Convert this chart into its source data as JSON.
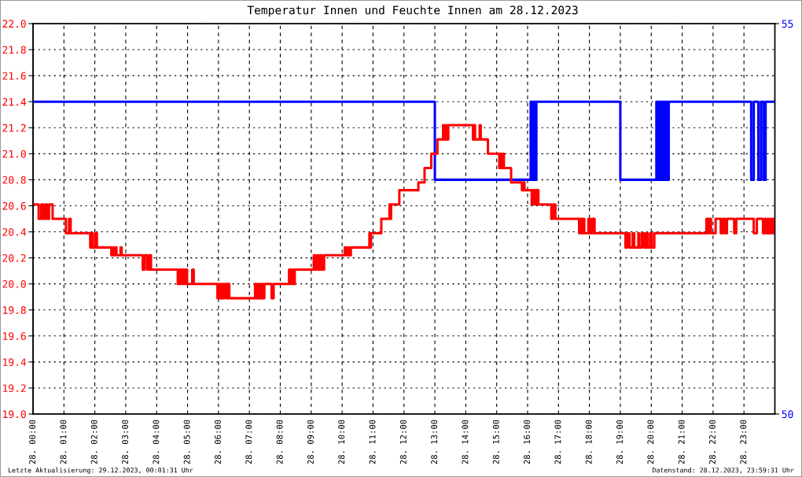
{
  "chart_data": {
    "type": "step",
    "title": "Temperatur Innen und Feuchte Innen am 28.12.2023",
    "annotations": [
      "Letzte Aktualisierung: 29.12.2023, 00:01:31 Uhr",
      "Datenstand: 28.12.2023, 23:59:31 Uhr"
    ],
    "xlim": [
      "2023-12-28T00:00",
      "2023-12-29T00:00"
    ],
    "xticks": [
      {
        "value": "2023-12-28T00:00",
        "label": "28. 00:00"
      },
      {
        "value": "2023-12-28T01:00",
        "label": "28. 01:00"
      },
      {
        "value": "2023-12-28T02:00",
        "label": "28. 02:00"
      },
      {
        "value": "2023-12-28T03:00",
        "label": "28. 03:00"
      },
      {
        "value": "2023-12-28T04:00",
        "label": "28. 04:00"
      },
      {
        "value": "2023-12-28T05:00",
        "label": "28. 05:00"
      },
      {
        "value": "2023-12-28T06:00",
        "label": "28. 06:00"
      },
      {
        "value": "2023-12-28T07:00",
        "label": "28. 07:00"
      },
      {
        "value": "2023-12-28T08:00",
        "label": "28. 08:00"
      },
      {
        "value": "2023-12-28T09:00",
        "label": "28. 09:00"
      },
      {
        "value": "2023-12-28T10:00",
        "label": "28. 10:00"
      },
      {
        "value": "2023-12-28T11:00",
        "label": "28. 11:00"
      },
      {
        "value": "2023-12-28T12:00",
        "label": "28. 12:00"
      },
      {
        "value": "2023-12-28T13:00",
        "label": "28. 13:00"
      },
      {
        "value": "2023-12-28T14:00",
        "label": "28. 14:00"
      },
      {
        "value": "2023-12-28T15:00",
        "label": "28. 15:00"
      },
      {
        "value": "2023-12-28T16:00",
        "label": "28. 16:00"
      },
      {
        "value": "2023-12-28T17:00",
        "label": "28. 17:00"
      },
      {
        "value": "2023-12-28T18:00",
        "label": "28. 18:00"
      },
      {
        "value": "2023-12-28T19:00",
        "label": "28. 19:00"
      },
      {
        "value": "2023-12-28T20:00",
        "label": "28. 20:00"
      },
      {
        "value": "2023-12-28T21:00",
        "label": "28. 21:00"
      },
      {
        "value": "2023-12-28T22:00",
        "label": "28. 22:00"
      },
      {
        "value": "2023-12-28T23:00",
        "label": "28. 23:00"
      }
    ],
    "ylim": [
      19,
      22
    ],
    "yticks": [
      {
        "value": 19,
        "label": "19.0"
      },
      19.2,
      19.4,
      19.6,
      19.8,
      {
        "value": 20,
        "label": "20.0"
      },
      20.2,
      20.4,
      20.6,
      20.8,
      {
        "value": 21,
        "label": "21.0"
      },
      21.2,
      21.4,
      21.6,
      21.8,
      {
        "value": 22,
        "label": "22.0"
      }
    ],
    "y2lim": [
      50,
      55
    ],
    "y2ticks": [
      50,
      55
    ],
    "grid": true,
    "series": [
      {
        "color": "#ff0000",
        "x": [
          "2023-12-28T00:00",
          "2023-12-28T00:11",
          "2023-12-28T00:16",
          "2023-12-28T00:20",
          "2023-12-28T00:24",
          "2023-12-28T00:28",
          "2023-12-28T00:31",
          "2023-12-28T00:38",
          "2023-12-28T01:04",
          "2023-12-28T01:10",
          "2023-12-28T01:13",
          "2023-12-28T01:51",
          "2023-12-28T01:54",
          "2023-12-28T01:56",
          "2023-12-28T02:01",
          "2023-12-28T02:04",
          "2023-12-28T02:32",
          "2023-12-28T02:35",
          "2023-12-28T02:37",
          "2023-12-28T02:40",
          "2023-12-28T02:42",
          "2023-12-28T02:50",
          "2023-12-28T02:52",
          "2023-12-28T03:33",
          "2023-12-28T03:37",
          "2023-12-28T03:42",
          "2023-12-28T03:46",
          "2023-12-28T03:49",
          "2023-12-28T04:41",
          "2023-12-28T04:44",
          "2023-12-28T04:47",
          "2023-12-28T04:50",
          "2023-12-28T04:53",
          "2023-12-28T04:56",
          "2023-12-28T04:59",
          "2023-12-28T05:09",
          "2023-12-28T05:12",
          "2023-12-28T05:58",
          "2023-12-28T06:00",
          "2023-12-28T06:03",
          "2023-12-28T06:06",
          "2023-12-28T06:09",
          "2023-12-28T06:12",
          "2023-12-28T06:16",
          "2023-12-28T06:18",
          "2023-12-28T06:21",
          "2023-12-28T07:11",
          "2023-12-28T07:14",
          "2023-12-28T07:17",
          "2023-12-28T07:20",
          "2023-12-28T07:23",
          "2023-12-28T07:26",
          "2023-12-28T07:29",
          "2023-12-28T07:43",
          "2023-12-28T07:47",
          "2023-12-28T08:17",
          "2023-12-28T08:21",
          "2023-12-28T08:24",
          "2023-12-28T08:26",
          "2023-12-28T08:28",
          "2023-12-28T09:05",
          "2023-12-28T09:08",
          "2023-12-28T09:12",
          "2023-12-28T09:15",
          "2023-12-28T09:18",
          "2023-12-28T09:21",
          "2023-12-28T09:25",
          "2023-12-28T10:05",
          "2023-12-28T10:08",
          "2023-12-28T10:12",
          "2023-12-28T10:14",
          "2023-12-28T10:17",
          "2023-12-28T10:53",
          "2023-12-28T10:55",
          "2023-12-28T10:56",
          "2023-12-28T11:16",
          "2023-12-28T11:32",
          "2023-12-28T11:34",
          "2023-12-28T11:35",
          "2023-12-28T11:51",
          "2023-12-28T12:28",
          "2023-12-28T12:40",
          "2023-12-28T12:53",
          "2023-12-28T13:05",
          "2023-12-28T13:16",
          "2023-12-28T13:19",
          "2023-12-28T13:22",
          "2023-12-28T13:24",
          "2023-12-28T13:26",
          "2023-12-28T14:14",
          "2023-12-28T14:16",
          "2023-12-28T14:18",
          "2023-12-28T14:27",
          "2023-12-28T14:29",
          "2023-12-28T14:43",
          "2023-12-28T15:05",
          "2023-12-28T15:08",
          "2023-12-28T15:10",
          "2023-12-28T15:13",
          "2023-12-28T15:14",
          "2023-12-28T15:28",
          "2023-12-28T15:49",
          "2023-12-28T15:52",
          "2023-12-28T15:54",
          "2023-12-28T16:08",
          "2023-12-28T16:11",
          "2023-12-28T16:14",
          "2023-12-28T16:17",
          "2023-12-28T16:21",
          "2023-12-28T16:46",
          "2023-12-28T16:50",
          "2023-12-28T16:54",
          "2023-12-28T17:40",
          "2023-12-28T17:43",
          "2023-12-28T17:46",
          "2023-12-28T17:48",
          "2023-12-28T17:50",
          "2023-12-28T17:58",
          "2023-12-28T18:01",
          "2023-12-28T18:05",
          "2023-12-28T18:07",
          "2023-12-28T18:08",
          "2023-12-28T18:10",
          "2023-12-28T19:10",
          "2023-12-28T19:14",
          "2023-12-28T19:18",
          "2023-12-28T19:24",
          "2023-12-28T19:27",
          "2023-12-28T19:35",
          "2023-12-28T19:37",
          "2023-12-28T19:42",
          "2023-12-28T19:46",
          "2023-12-28T19:50",
          "2023-12-28T19:53",
          "2023-12-28T19:58",
          "2023-12-28T20:01",
          "2023-12-28T20:06",
          "2023-12-28T21:47",
          "2023-12-28T21:50",
          "2023-12-28T21:52",
          "2023-12-28T21:56",
          "2023-12-28T22:05",
          "2023-12-28T22:15",
          "2023-12-28T22:19",
          "2023-12-28T22:23",
          "2023-12-28T22:27",
          "2023-12-28T22:41",
          "2023-12-28T22:45",
          "2023-12-28T23:19",
          "2023-12-28T23:25",
          "2023-12-28T23:37",
          "2023-12-28T23:40",
          "2023-12-28T23:42",
          "2023-12-28T23:46",
          "2023-12-28T23:48",
          "2023-12-28T23:52",
          "2023-12-28T23:54",
          "2023-12-28T23:57",
          "2023-12-28T23:59"
        ],
        "values": [
          20.61,
          20.5,
          20.61,
          20.5,
          20.61,
          20.5,
          20.61,
          20.5,
          20.39,
          20.5,
          20.39,
          20.28,
          20.39,
          20.28,
          20.39,
          20.28,
          20.22,
          20.28,
          20.22,
          20.28,
          20.22,
          20.28,
          20.22,
          20.11,
          20.22,
          20.11,
          20.22,
          20.11,
          20.0,
          20.11,
          20.0,
          20.11,
          20.0,
          20.11,
          20.0,
          20.11,
          20.0,
          19.89,
          20.0,
          19.89,
          20.0,
          19.89,
          20.0,
          19.89,
          20.0,
          19.89,
          20.0,
          19.89,
          20.0,
          19.89,
          20.0,
          19.89,
          20.0,
          19.89,
          20.0,
          20.11,
          20.0,
          20.11,
          20.0,
          20.11,
          20.22,
          20.11,
          20.22,
          20.11,
          20.22,
          20.11,
          20.22,
          20.28,
          20.22,
          20.28,
          20.22,
          20.28,
          20.39,
          20.28,
          20.39,
          20.5,
          20.61,
          20.5,
          20.61,
          20.72,
          20.78,
          20.89,
          21.0,
          21.11,
          21.22,
          21.11,
          21.22,
          21.11,
          21.22,
          21.11,
          21.22,
          21.11,
          21.22,
          21.11,
          21.0,
          20.89,
          21.0,
          20.89,
          21.0,
          20.89,
          20.78,
          20.72,
          20.78,
          20.72,
          20.61,
          20.72,
          20.61,
          20.72,
          20.61,
          20.5,
          20.61,
          20.5,
          20.39,
          20.5,
          20.39,
          20.5,
          20.39,
          20.5,
          20.39,
          20.5,
          20.39,
          20.5,
          20.39,
          20.28,
          20.39,
          20.28,
          20.39,
          20.28,
          20.39,
          20.28,
          20.39,
          20.28,
          20.39,
          20.28,
          20.39,
          20.28,
          20.39,
          20.5,
          20.39,
          20.5,
          20.39,
          20.5,
          20.39,
          20.5,
          20.39,
          20.5,
          20.39,
          20.5,
          20.39,
          20.5,
          20.39,
          20.5,
          20.39,
          20.5,
          20.39,
          20.5,
          20.39,
          20.5,
          20.39
        ]
      },
      {
        "color": "#0000ff",
        "axis": "y2",
        "x": [
          "2023-12-28T00:00",
          "2023-12-28T13:00",
          "2023-12-28T16:06",
          "2023-12-28T16:08",
          "2023-12-28T16:10",
          "2023-12-28T16:11",
          "2023-12-28T16:13",
          "2023-12-28T16:15",
          "2023-12-28T16:17",
          "2023-12-28T19:00",
          "2023-12-28T20:10",
          "2023-12-28T20:12",
          "2023-12-28T20:14",
          "2023-12-28T20:17",
          "2023-12-28T20:19",
          "2023-12-28T20:22",
          "2023-12-28T20:24",
          "2023-12-28T20:26",
          "2023-12-28T20:29",
          "2023-12-28T20:31",
          "2023-12-28T20:34",
          "2023-12-28T23:14",
          "2023-12-28T23:19",
          "2023-12-28T23:28",
          "2023-12-28T23:33",
          "2023-12-28T23:38",
          "2023-12-28T23:42",
          "2023-12-28T23:59"
        ],
        "values": [
          54,
          53,
          54,
          53,
          54,
          53,
          54,
          53,
          54,
          53,
          54,
          53,
          54,
          53,
          54,
          53,
          54,
          53,
          54,
          53,
          54,
          53,
          54,
          53,
          54,
          53,
          54,
          54
        ]
      }
    ]
  }
}
